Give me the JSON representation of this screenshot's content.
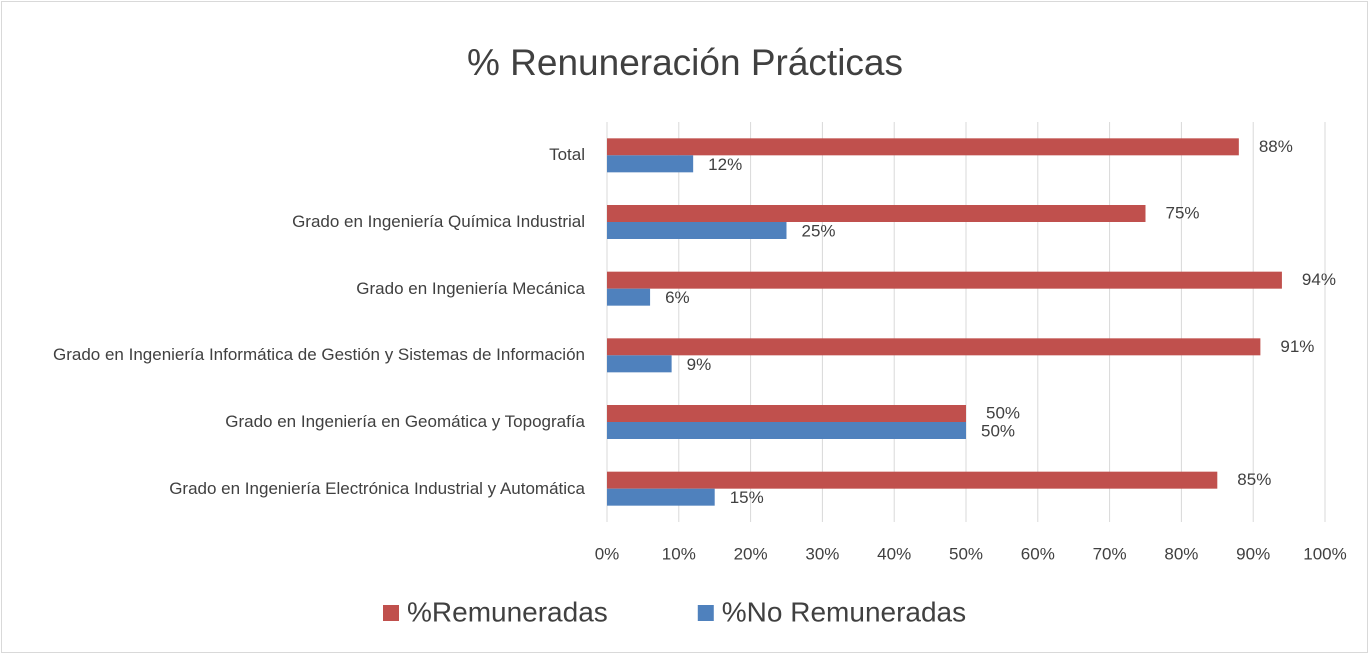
{
  "chart_data": {
    "type": "hbar",
    "title": "% Renuneración Prácticas",
    "categories": [
      "Total",
      "Grado en Ingeniería Química Industrial",
      "Grado en Ingeniería Mecánica",
      "Grado en Ingeniería Informática de Gestión y Sistemas de Información",
      "Grado en Ingeniería en Geomática y Topografía",
      "Grado en Ingeniería Electrónica Industrial y Automática"
    ],
    "series": [
      {
        "name": "%Remuneradas",
        "color": "#c0504d",
        "values": [
          88,
          75,
          94,
          91,
          50,
          85
        ],
        "value_labels": [
          "88%",
          "75%",
          "94%",
          "91%",
          "50%",
          "85%"
        ]
      },
      {
        "name": "%No Remuneradas",
        "color": "#4f81bd",
        "values": [
          12,
          25,
          6,
          9,
          50,
          15
        ],
        "value_labels": [
          "12%",
          "25%",
          "6%",
          "9%",
          "50%",
          "15%"
        ]
      }
    ],
    "xlim": [
      0,
      100
    ],
    "xticks": [
      {
        "value": 0,
        "label": "0%"
      },
      {
        "value": 10,
        "label": "10%"
      },
      {
        "value": 20,
        "label": "20%"
      },
      {
        "value": 30,
        "label": "30%"
      },
      {
        "value": 40,
        "label": "40%"
      },
      {
        "value": 50,
        "label": "50%"
      },
      {
        "value": 60,
        "label": "60%"
      },
      {
        "value": 70,
        "label": "70%"
      },
      {
        "value": 80,
        "label": "80%"
      },
      {
        "value": 90,
        "label": "90%"
      },
      {
        "value": 100,
        "label": "100%"
      }
    ],
    "grid": true,
    "legend": "bottom"
  }
}
